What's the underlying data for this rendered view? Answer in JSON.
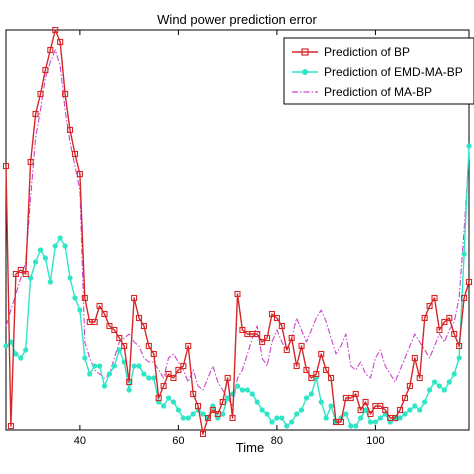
{
  "chart_data": {
    "type": "line",
    "title": "Wind power prediction error",
    "xlabel": "Time",
    "ylabel": "",
    "xlim": [
      25,
      119
    ],
    "ylim": [
      0,
      100
    ],
    "xticks": [
      40,
      60,
      80,
      100
    ],
    "grid": false,
    "legend_position": "top-right",
    "series": [
      {
        "name": "Prediction of BP",
        "color": "#d62728",
        "style": "solid",
        "marker": "square",
        "points": [
          [
            25,
            66
          ],
          [
            26,
            1
          ],
          [
            27,
            39
          ],
          [
            28,
            40
          ],
          [
            29,
            39
          ],
          [
            30,
            67
          ],
          [
            31,
            79
          ],
          [
            32,
            84
          ],
          [
            33,
            90
          ],
          [
            34,
            95
          ],
          [
            35,
            100
          ],
          [
            36,
            97
          ],
          [
            37,
            84
          ],
          [
            38,
            75
          ],
          [
            39,
            69
          ],
          [
            40,
            64
          ],
          [
            41,
            33
          ],
          [
            42,
            27
          ],
          [
            43,
            27
          ],
          [
            44,
            31
          ],
          [
            45,
            29
          ],
          [
            46,
            26
          ],
          [
            47,
            25
          ],
          [
            48,
            23
          ],
          [
            49,
            21
          ],
          [
            50,
            12
          ],
          [
            51,
            33
          ],
          [
            52,
            28
          ],
          [
            53,
            26
          ],
          [
            54,
            21
          ],
          [
            55,
            19
          ],
          [
            56,
            8
          ],
          [
            57,
            11
          ],
          [
            58,
            14
          ],
          [
            59,
            13
          ],
          [
            60,
            15
          ],
          [
            61,
            16
          ],
          [
            62,
            21
          ],
          [
            63,
            9
          ],
          [
            64,
            6
          ],
          [
            65,
            -1
          ],
          [
            66,
            3
          ],
          [
            67,
            5
          ],
          [
            68,
            4
          ],
          [
            69,
            7
          ],
          [
            70,
            13
          ],
          [
            71,
            3
          ],
          [
            72,
            34
          ],
          [
            73,
            25
          ],
          [
            74,
            24
          ],
          [
            75,
            24
          ],
          [
            76,
            24
          ],
          [
            77,
            22
          ],
          [
            78,
            23
          ],
          [
            79,
            29
          ],
          [
            80,
            28
          ],
          [
            81,
            26
          ],
          [
            82,
            20
          ],
          [
            83,
            23
          ],
          [
            84,
            16
          ],
          [
            85,
            21
          ],
          [
            86,
            15
          ],
          [
            87,
            13
          ],
          [
            88,
            14
          ],
          [
            89,
            19
          ],
          [
            90,
            15
          ],
          [
            91,
            13
          ],
          [
            92,
            2
          ],
          [
            93,
            2
          ],
          [
            94,
            8
          ],
          [
            95,
            8
          ],
          [
            96,
            9
          ],
          [
            97,
            5
          ],
          [
            98,
            7
          ],
          [
            99,
            4
          ],
          [
            100,
            6
          ],
          [
            101,
            6
          ],
          [
            102,
            5
          ],
          [
            103,
            3
          ],
          [
            104,
            3
          ],
          [
            105,
            5
          ],
          [
            106,
            8
          ],
          [
            107,
            11
          ],
          [
            108,
            18
          ],
          [
            109,
            13
          ],
          [
            110,
            28
          ],
          [
            111,
            31
          ],
          [
            112,
            33
          ],
          [
            113,
            25
          ],
          [
            114,
            27
          ],
          [
            115,
            28
          ],
          [
            116,
            24
          ],
          [
            117,
            21
          ],
          [
            118,
            33
          ],
          [
            119,
            37
          ]
        ]
      },
      {
        "name": "Prediction of EMD-MA-BP",
        "color": "#2ee6c6",
        "style": "solid",
        "marker": "circle",
        "points": [
          [
            25,
            21
          ],
          [
            26,
            22
          ],
          [
            27,
            19
          ],
          [
            28,
            18
          ],
          [
            29,
            20
          ],
          [
            30,
            38
          ],
          [
            31,
            42
          ],
          [
            32,
            45
          ],
          [
            33,
            43
          ],
          [
            34,
            37
          ],
          [
            35,
            46
          ],
          [
            36,
            48
          ],
          [
            37,
            46
          ],
          [
            38,
            38
          ],
          [
            39,
            33
          ],
          [
            40,
            30
          ],
          [
            41,
            18
          ],
          [
            42,
            14
          ],
          [
            43,
            16
          ],
          [
            44,
            16
          ],
          [
            45,
            11
          ],
          [
            46,
            14
          ],
          [
            47,
            16
          ],
          [
            48,
            20
          ],
          [
            49,
            17
          ],
          [
            50,
            10
          ],
          [
            51,
            16
          ],
          [
            52,
            16
          ],
          [
            53,
            14
          ],
          [
            54,
            13
          ],
          [
            55,
            13
          ],
          [
            56,
            7
          ],
          [
            57,
            6
          ],
          [
            58,
            8
          ],
          [
            59,
            7
          ],
          [
            60,
            5
          ],
          [
            61,
            3
          ],
          [
            62,
            3
          ],
          [
            63,
            4
          ],
          [
            64,
            5
          ],
          [
            65,
            4
          ],
          [
            66,
            3
          ],
          [
            67,
            6
          ],
          [
            68,
            3
          ],
          [
            69,
            4
          ],
          [
            70,
            8
          ],
          [
            71,
            9
          ],
          [
            72,
            11
          ],
          [
            73,
            10
          ],
          [
            74,
            10
          ],
          [
            75,
            9
          ],
          [
            76,
            7
          ],
          [
            77,
            5
          ],
          [
            78,
            4
          ],
          [
            79,
            2
          ],
          [
            80,
            3
          ],
          [
            81,
            3
          ],
          [
            82,
            1
          ],
          [
            83,
            2
          ],
          [
            84,
            4
          ],
          [
            85,
            5
          ],
          [
            86,
            8
          ],
          [
            87,
            9
          ],
          [
            88,
            13
          ],
          [
            89,
            7
          ],
          [
            90,
            3
          ],
          [
            91,
            6
          ],
          [
            92,
            2
          ],
          [
            93,
            3
          ],
          [
            94,
            4
          ],
          [
            95,
            1
          ],
          [
            96,
            1
          ],
          [
            97,
            3
          ],
          [
            98,
            5
          ],
          [
            99,
            2
          ],
          [
            100,
            2
          ],
          [
            101,
            3
          ],
          [
            102,
            4
          ],
          [
            103,
            2
          ],
          [
            104,
            3
          ],
          [
            105,
            3
          ],
          [
            106,
            4
          ],
          [
            107,
            5
          ],
          [
            108,
            6
          ],
          [
            109,
            5
          ],
          [
            110,
            7
          ],
          [
            111,
            10
          ],
          [
            112,
            12
          ],
          [
            113,
            11
          ],
          [
            114,
            10
          ],
          [
            115,
            12
          ],
          [
            116,
            14
          ],
          [
            117,
            18
          ],
          [
            118,
            44
          ],
          [
            119,
            71
          ]
        ]
      },
      {
        "name": "Prediction of MA-BP",
        "color": "#cc44cc",
        "style": "dashdot",
        "marker": "none",
        "points": [
          [
            25,
            26
          ],
          [
            26,
            30
          ],
          [
            27,
            34
          ],
          [
            28,
            38
          ],
          [
            29,
            42
          ],
          [
            30,
            58
          ],
          [
            31,
            73
          ],
          [
            32,
            80
          ],
          [
            33,
            88
          ],
          [
            34,
            92
          ],
          [
            35,
            95
          ],
          [
            36,
            91
          ],
          [
            37,
            80
          ],
          [
            38,
            72
          ],
          [
            39,
            66
          ],
          [
            40,
            60
          ],
          [
            41,
            22
          ],
          [
            42,
            18
          ],
          [
            43,
            15
          ],
          [
            44,
            14
          ],
          [
            45,
            13
          ],
          [
            46,
            14
          ],
          [
            47,
            18
          ],
          [
            48,
            22
          ],
          [
            49,
            23
          ],
          [
            50,
            24
          ],
          [
            51,
            22
          ],
          [
            52,
            21
          ],
          [
            53,
            18
          ],
          [
            54,
            17
          ],
          [
            55,
            17
          ],
          [
            56,
            15
          ],
          [
            57,
            13
          ],
          [
            58,
            18
          ],
          [
            59,
            19
          ],
          [
            60,
            17
          ],
          [
            61,
            15
          ],
          [
            62,
            12
          ],
          [
            63,
            15
          ],
          [
            64,
            11
          ],
          [
            65,
            10
          ],
          [
            66,
            13
          ],
          [
            67,
            16
          ],
          [
            68,
            12
          ],
          [
            69,
            10
          ],
          [
            70,
            8
          ],
          [
            71,
            6
          ],
          [
            72,
            13
          ],
          [
            73,
            15
          ],
          [
            74,
            19
          ],
          [
            75,
            23
          ],
          [
            76,
            26
          ],
          [
            77,
            18
          ],
          [
            78,
            16
          ],
          [
            79,
            22
          ],
          [
            80,
            25
          ],
          [
            81,
            22
          ],
          [
            82,
            20
          ],
          [
            83,
            23
          ],
          [
            84,
            28
          ],
          [
            85,
            25
          ],
          [
            86,
            22
          ],
          [
            87,
            25
          ],
          [
            88,
            28
          ],
          [
            89,
            30
          ],
          [
            90,
            27
          ],
          [
            91,
            23
          ],
          [
            92,
            19
          ],
          [
            93,
            21
          ],
          [
            94,
            24
          ],
          [
            95,
            16
          ],
          [
            96,
            15
          ],
          [
            97,
            17
          ],
          [
            98,
            14
          ],
          [
            99,
            13
          ],
          [
            100,
            18
          ],
          [
            101,
            20
          ],
          [
            102,
            16
          ],
          [
            103,
            14
          ],
          [
            104,
            12
          ],
          [
            105,
            15
          ],
          [
            106,
            18
          ],
          [
            107,
            21
          ],
          [
            108,
            24
          ],
          [
            109,
            22
          ],
          [
            110,
            20
          ],
          [
            111,
            18
          ],
          [
            112,
            21
          ],
          [
            113,
            24
          ],
          [
            114,
            22
          ],
          [
            115,
            25
          ],
          [
            116,
            27
          ],
          [
            117,
            33
          ],
          [
            118,
            50
          ],
          [
            119,
            69
          ]
        ]
      }
    ]
  }
}
